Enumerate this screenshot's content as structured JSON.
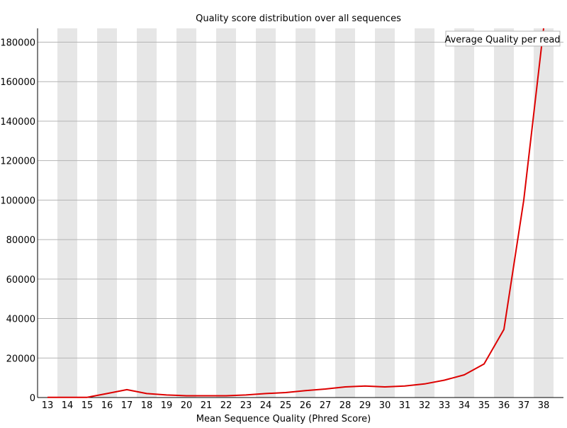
{
  "chart_data": {
    "type": "line",
    "title": "Quality score distribution over all sequences",
    "xlabel": "Mean Sequence Quality (Phred Score)",
    "ylabel": "",
    "categories": [
      "13",
      "14",
      "15",
      "16",
      "17",
      "18",
      "19",
      "20",
      "21",
      "22",
      "23",
      "24",
      "25",
      "26",
      "27",
      "28",
      "29",
      "30",
      "31",
      "32",
      "33",
      "34",
      "35",
      "36",
      "37",
      "38"
    ],
    "ylim": [
      0,
      187000
    ],
    "yticks": [
      0,
      20000,
      40000,
      60000,
      80000,
      100000,
      120000,
      140000,
      160000,
      180000
    ],
    "grid": true,
    "alternating_column_shading": true,
    "legend_position": "top-right",
    "series": [
      {
        "name": "Average Quality per read",
        "color": "#dd0000",
        "values": [
          100,
          100,
          100,
          2000,
          4000,
          2000,
          1300,
          900,
          900,
          900,
          1300,
          2000,
          2500,
          3500,
          4300,
          5400,
          5800,
          5400,
          5800,
          6900,
          8800,
          11500,
          17000,
          34500,
          100000,
          187000
        ]
      }
    ]
  },
  "colors": {
    "band": "#e6e6e6",
    "grid": "#b4b4b4",
    "axis": "#000000",
    "line": "#dd0000",
    "legend_border": "#b4b4b4",
    "legend_text": "#cc0000"
  }
}
